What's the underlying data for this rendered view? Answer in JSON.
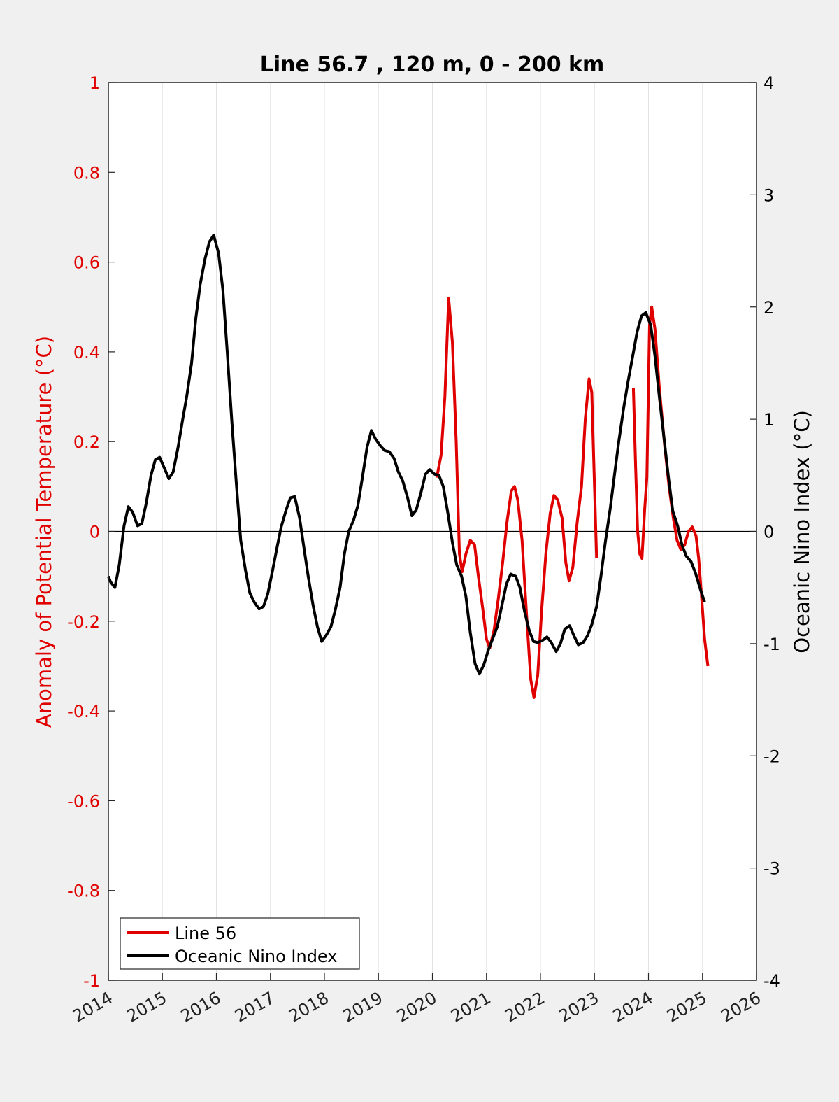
{
  "chart_data": {
    "type": "line",
    "title": "Line 56.7 , 120 m, 0 - 200 km",
    "xlabel": "",
    "xlim": [
      2014,
      2026
    ],
    "xticks": [
      "2014",
      "2015",
      "2016",
      "2017",
      "2018",
      "2019",
      "2020",
      "2021",
      "2022",
      "2023",
      "2024",
      "2025",
      "2026"
    ],
    "ylabel_left": "Anomaly of Potential Temperature (°C)",
    "ylim_left": [
      -1,
      1
    ],
    "yticks_left": [
      "1",
      "0.8",
      "0.6",
      "0.4",
      "0.2",
      "0",
      "-0.2",
      "-0.4",
      "-0.6",
      "-0.8",
      "-1"
    ],
    "ylabel_right": "Oceanic Nino Index (°C)",
    "ylim_right": [
      -4,
      4
    ],
    "yticks_right": [
      "4",
      "3",
      "2",
      "1",
      "0",
      "-1",
      "-2",
      "-3",
      "-4"
    ],
    "grid": "vertical",
    "legend_position": "bottom-left",
    "series": [
      {
        "name": "Line 56",
        "axis": "left",
        "color": "#e00000",
        "segments": [
          [
            [
              2020.08,
              0.12
            ],
            [
              2020.16,
              0.17
            ],
            [
              2020.23,
              0.3
            ],
            [
              2020.3,
              0.52
            ],
            [
              2020.37,
              0.42
            ],
            [
              2020.44,
              0.2
            ],
            [
              2020.5,
              -0.05
            ],
            [
              2020.55,
              -0.09
            ],
            [
              2020.62,
              -0.05
            ],
            [
              2020.7,
              -0.02
            ],
            [
              2020.78,
              -0.03
            ],
            [
              2020.85,
              -0.1
            ],
            [
              2020.93,
              -0.17
            ],
            [
              2021.0,
              -0.24
            ],
            [
              2021.06,
              -0.26
            ],
            [
              2021.14,
              -0.22
            ],
            [
              2021.22,
              -0.15
            ],
            [
              2021.3,
              -0.07
            ],
            [
              2021.38,
              0.02
            ],
            [
              2021.46,
              0.09
            ],
            [
              2021.52,
              0.1
            ],
            [
              2021.58,
              0.07
            ],
            [
              2021.66,
              -0.02
            ],
            [
              2021.74,
              -0.18
            ],
            [
              2021.82,
              -0.33
            ],
            [
              2021.88,
              -0.37
            ],
            [
              2021.95,
              -0.32
            ],
            [
              2022.02,
              -0.18
            ],
            [
              2022.1,
              -0.05
            ],
            [
              2022.18,
              0.04
            ],
            [
              2022.25,
              0.08
            ],
            [
              2022.32,
              0.07
            ],
            [
              2022.4,
              0.03
            ],
            [
              2022.47,
              -0.07
            ],
            [
              2022.53,
              -0.11
            ],
            [
              2022.6,
              -0.08
            ],
            [
              2022.68,
              0.02
            ],
            [
              2022.76,
              0.1
            ],
            [
              2022.83,
              0.25
            ],
            [
              2022.9,
              0.34
            ],
            [
              2022.95,
              0.31
            ],
            [
              2023.0,
              0.1
            ],
            [
              2023.04,
              -0.06
            ]
          ],
          [
            [
              2023.72,
              0.32
            ],
            [
              2023.76,
              0.15
            ],
            [
              2023.8,
              0.0
            ],
            [
              2023.84,
              -0.05
            ],
            [
              2023.88,
              -0.06
            ],
            [
              2023.93,
              0.05
            ],
            [
              2023.97,
              0.12
            ],
            [
              2024.02,
              0.46
            ],
            [
              2024.06,
              0.5
            ],
            [
              2024.12,
              0.45
            ],
            [
              2024.2,
              0.32
            ],
            [
              2024.3,
              0.19
            ],
            [
              2024.38,
              0.1
            ],
            [
              2024.46,
              0.03
            ],
            [
              2024.53,
              -0.02
            ],
            [
              2024.6,
              -0.04
            ],
            [
              2024.67,
              -0.03
            ],
            [
              2024.74,
              0.0
            ],
            [
              2024.81,
              0.01
            ],
            [
              2024.88,
              -0.01
            ],
            [
              2024.93,
              -0.06
            ],
            [
              2024.98,
              -0.14
            ],
            [
              2025.04,
              -0.24
            ],
            [
              2025.1,
              -0.3
            ]
          ]
        ]
      },
      {
        "name": "Oceanic Nino Index",
        "axis": "right",
        "color": "#000000",
        "segments": [
          [
            [
              2014.0,
              -0.4
            ],
            [
              2014.04,
              -0.45
            ],
            [
              2014.12,
              -0.5
            ],
            [
              2014.2,
              -0.3
            ],
            [
              2014.29,
              0.05
            ],
            [
              2014.37,
              0.22
            ],
            [
              2014.45,
              0.17
            ],
            [
              2014.54,
              0.05
            ],
            [
              2014.62,
              0.07
            ],
            [
              2014.7,
              0.25
            ],
            [
              2014.79,
              0.5
            ],
            [
              2014.87,
              0.64
            ],
            [
              2014.95,
              0.66
            ],
            [
              2015.04,
              0.56
            ],
            [
              2015.12,
              0.47
            ],
            [
              2015.2,
              0.53
            ],
            [
              2015.29,
              0.75
            ],
            [
              2015.37,
              0.98
            ],
            [
              2015.45,
              1.2
            ],
            [
              2015.54,
              1.5
            ],
            [
              2015.62,
              1.9
            ],
            [
              2015.7,
              2.2
            ],
            [
              2015.79,
              2.43
            ],
            [
              2015.87,
              2.58
            ],
            [
              2015.95,
              2.64
            ],
            [
              2016.04,
              2.48
            ],
            [
              2016.12,
              2.15
            ],
            [
              2016.2,
              1.6
            ],
            [
              2016.29,
              0.95
            ],
            [
              2016.37,
              0.42
            ],
            [
              2016.45,
              -0.08
            ],
            [
              2016.54,
              -0.35
            ],
            [
              2016.62,
              -0.55
            ],
            [
              2016.7,
              -0.63
            ],
            [
              2016.79,
              -0.69
            ],
            [
              2016.87,
              -0.67
            ],
            [
              2016.95,
              -0.56
            ],
            [
              2017.04,
              -0.35
            ],
            [
              2017.12,
              -0.15
            ],
            [
              2017.2,
              0.04
            ],
            [
              2017.29,
              0.19
            ],
            [
              2017.37,
              0.3
            ],
            [
              2017.45,
              0.31
            ],
            [
              2017.54,
              0.12
            ],
            [
              2017.62,
              -0.14
            ],
            [
              2017.7,
              -0.4
            ],
            [
              2017.79,
              -0.66
            ],
            [
              2017.87,
              -0.85
            ],
            [
              2017.95,
              -0.98
            ],
            [
              2018.04,
              -0.92
            ],
            [
              2018.12,
              -0.85
            ],
            [
              2018.2,
              -0.7
            ],
            [
              2018.29,
              -0.5
            ],
            [
              2018.37,
              -0.2
            ],
            [
              2018.45,
              0.0
            ],
            [
              2018.54,
              0.1
            ],
            [
              2018.62,
              0.23
            ],
            [
              2018.7,
              0.47
            ],
            [
              2018.79,
              0.75
            ],
            [
              2018.87,
              0.9
            ],
            [
              2018.95,
              0.82
            ],
            [
              2019.04,
              0.76
            ],
            [
              2019.12,
              0.72
            ],
            [
              2019.2,
              0.71
            ],
            [
              2019.29,
              0.65
            ],
            [
              2019.37,
              0.53
            ],
            [
              2019.45,
              0.45
            ],
            [
              2019.54,
              0.3
            ],
            [
              2019.62,
              0.14
            ],
            [
              2019.7,
              0.19
            ],
            [
              2019.79,
              0.35
            ],
            [
              2019.87,
              0.51
            ],
            [
              2019.95,
              0.55
            ],
            [
              2020.04,
              0.51
            ],
            [
              2020.12,
              0.5
            ],
            [
              2020.2,
              0.4
            ],
            [
              2020.29,
              0.15
            ],
            [
              2020.37,
              -0.1
            ],
            [
              2020.45,
              -0.3
            ],
            [
              2020.54,
              -0.4
            ],
            [
              2020.62,
              -0.58
            ],
            [
              2020.7,
              -0.9
            ],
            [
              2020.79,
              -1.18
            ],
            [
              2020.87,
              -1.27
            ],
            [
              2020.95,
              -1.19
            ],
            [
              2021.04,
              -1.05
            ],
            [
              2021.12,
              -0.95
            ],
            [
              2021.2,
              -0.85
            ],
            [
              2021.29,
              -0.65
            ],
            [
              2021.37,
              -0.47
            ],
            [
              2021.45,
              -0.38
            ],
            [
              2021.54,
              -0.4
            ],
            [
              2021.62,
              -0.5
            ],
            [
              2021.7,
              -0.7
            ],
            [
              2021.79,
              -0.88
            ],
            [
              2021.87,
              -0.98
            ],
            [
              2021.95,
              -0.99
            ],
            [
              2022.04,
              -0.97
            ],
            [
              2022.12,
              -0.94
            ],
            [
              2022.2,
              -0.99
            ],
            [
              2022.29,
              -1.07
            ],
            [
              2022.37,
              -1.0
            ],
            [
              2022.45,
              -0.87
            ],
            [
              2022.54,
              -0.84
            ],
            [
              2022.62,
              -0.93
            ],
            [
              2022.7,
              -1.01
            ],
            [
              2022.79,
              -0.99
            ],
            [
              2022.87,
              -0.93
            ],
            [
              2022.95,
              -0.83
            ],
            [
              2023.04,
              -0.67
            ],
            [
              2023.12,
              -0.4
            ],
            [
              2023.2,
              -0.1
            ],
            [
              2023.29,
              0.2
            ],
            [
              2023.37,
              0.5
            ],
            [
              2023.45,
              0.8
            ],
            [
              2023.54,
              1.1
            ],
            [
              2023.62,
              1.33
            ],
            [
              2023.7,
              1.54
            ],
            [
              2023.79,
              1.78
            ],
            [
              2023.87,
              1.92
            ],
            [
              2023.95,
              1.95
            ],
            [
              2024.04,
              1.84
            ],
            [
              2024.12,
              1.56
            ],
            [
              2024.2,
              1.2
            ],
            [
              2024.29,
              0.82
            ],
            [
              2024.37,
              0.48
            ],
            [
              2024.45,
              0.18
            ],
            [
              2024.54,
              0.05
            ],
            [
              2024.62,
              -0.12
            ],
            [
              2024.7,
              -0.22
            ],
            [
              2024.79,
              -0.27
            ],
            [
              2024.87,
              -0.37
            ],
            [
              2024.95,
              -0.5
            ],
            [
              2025.04,
              -0.63
            ]
          ]
        ]
      }
    ]
  }
}
